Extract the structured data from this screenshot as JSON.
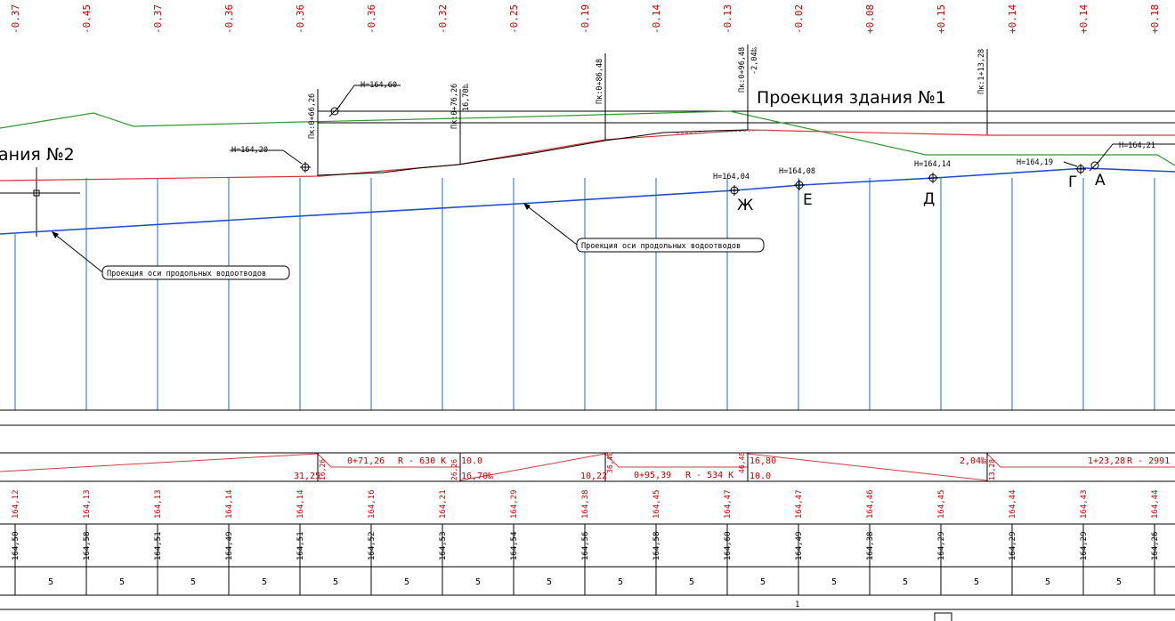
{
  "top_values": [
    "-0.37",
    "-0.45",
    "-0.37",
    "-0.36",
    "-0.36",
    "-0.36",
    "-0.32",
    "-0.25",
    "-0.19",
    "-0.14",
    "-0.13",
    "-0.02",
    "+0.08",
    "+0.15",
    "+0.14",
    "+0.14",
    "+0.18"
  ],
  "building1_label": "Проекция здания №1",
  "building2_label": "ания №2",
  "callout_axis_1": "Проекция оси продольных водоотводов",
  "callout_axis_2": "Проекция оси продольных водоотводов",
  "elevations": {
    "h_164_60": "H=164,60",
    "h_164_20": "H=164,20",
    "h_164_04": "H=164,04",
    "h_164_08": "H=164,08",
    "h_164_14": "H=164,14",
    "h_164_19": "H=164,19",
    "h_164_21": "H=164,21"
  },
  "points": {
    "zh": "Ж",
    "e": "Е",
    "d": "Д",
    "g": "Г",
    "a": "А"
  },
  "pk_labels": {
    "pk1": "Пк:0+66,26",
    "pk2": "Пк:0+76,26",
    "pk2_slope": "16,70‰",
    "pk3": "Пк:0+86,48",
    "pk4": "Пк:0+96,48",
    "pk4_slope": "-2,04‰",
    "pk5": "Пк:1+13,28"
  },
  "profile_band": {
    "seg1_len": "31,25",
    "seg1_angle": "16,26",
    "curve1": "0+71,26",
    "curve1_r": "R - 630  К",
    "v10": "10.0",
    "v2626": "26,26",
    "slope1": "16,70‰",
    "v1022": "10,22",
    "v3640": "36,40",
    "curve2": "0+95,39",
    "curve2_r": "R - 534  К",
    "v4648": "46,48",
    "v1680": "16,80",
    "v100b": "10.0",
    "slope2": "2,04‰",
    "v1328": "13,28",
    "curve3": "1+23,28",
    "curve3_r": "R - 2991"
  },
  "design_marks": [
    "164,12",
    "164,13",
    "164,13",
    "164,14",
    "164,14",
    "164,16",
    "164,21",
    "164,29",
    "164,38",
    "164,45",
    "164,47",
    "164,47",
    "164,46",
    "164,45",
    "164,44",
    "164,43",
    "164,44"
  ],
  "ground_marks": [
    "164,50",
    "164,58",
    "164,51",
    "164,49",
    "164,51",
    "164,52",
    "164,53",
    "164,54",
    "164,56",
    "164,58",
    "164,60",
    "164,49",
    "164,38",
    "164,29",
    "164,29",
    "164,29",
    "164,26"
  ],
  "distances": [
    "5",
    "5",
    "5",
    "5",
    "5",
    "5",
    "5",
    "5",
    "5",
    "5",
    "5",
    "5",
    "5",
    "5",
    "5",
    "5"
  ],
  "bottom_number": "1"
}
